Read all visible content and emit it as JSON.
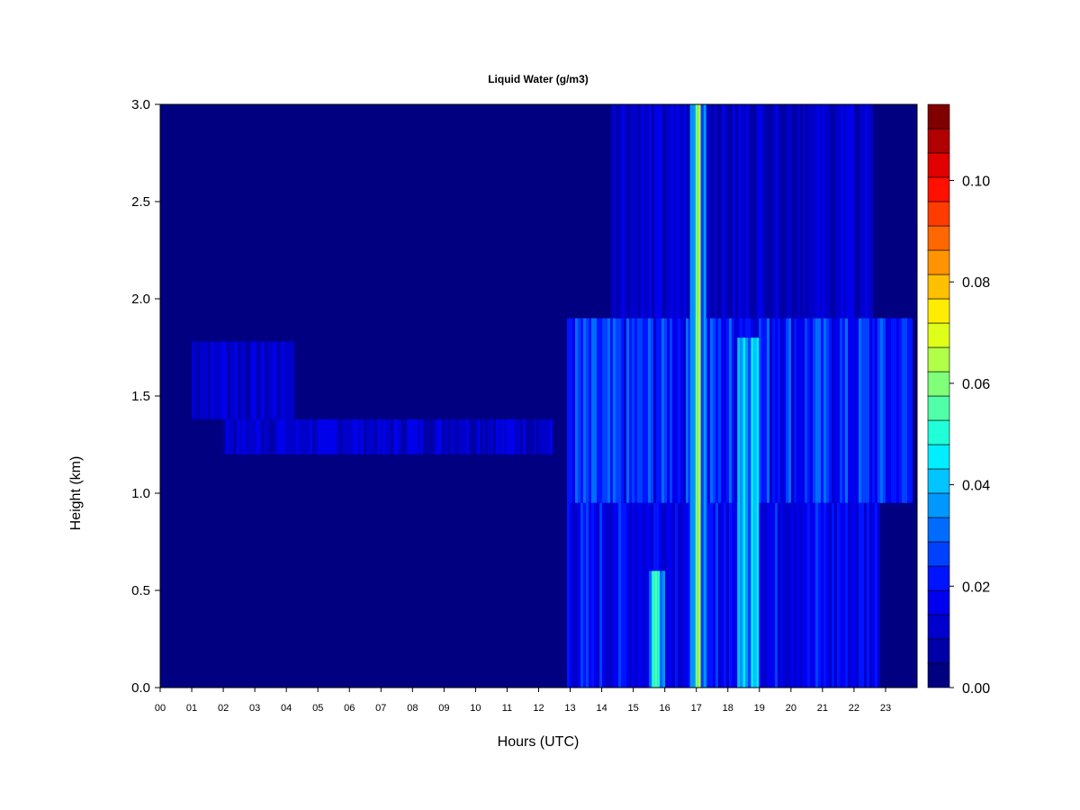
{
  "chart_data": {
    "type": "heatmap",
    "title": "Liquid Water (g/m3)",
    "xlabel": "Hours (UTC)",
    "ylabel": "Height (km)",
    "xlim": [
      0,
      24
    ],
    "ylim": [
      0,
      3.0
    ],
    "x_ticks": [
      "00",
      "01",
      "02",
      "03",
      "04",
      "05",
      "06",
      "07",
      "08",
      "09",
      "10",
      "11",
      "12",
      "13",
      "14",
      "15",
      "16",
      "17",
      "18",
      "19",
      "20",
      "21",
      "22",
      "23"
    ],
    "y_ticks": [
      "0.0",
      "0.5",
      "1.0",
      "1.5",
      "2.0",
      "2.5",
      "3.0"
    ],
    "colorbar": {
      "range": [
        0,
        0.115
      ],
      "ticks": [
        "0.00",
        "0.02",
        "0.04",
        "0.06",
        "0.08",
        "0.10"
      ],
      "tick_values": [
        0.0,
        0.02,
        0.04,
        0.06,
        0.08,
        0.1
      ],
      "colors": [
        "#000080",
        "#0000a8",
        "#0000cc",
        "#0000ee",
        "#0014ff",
        "#0040ff",
        "#006cff",
        "#0098ff",
        "#00c4ff",
        "#00eeff",
        "#20ffd8",
        "#50ffa8",
        "#80ff78",
        "#b0ff48",
        "#e0ff18",
        "#ffec00",
        "#ffc000",
        "#ff9400",
        "#ff6800",
        "#ff3c00",
        "#ff1000",
        "#e00000",
        "#b00000",
        "#800000"
      ]
    },
    "features": [
      {
        "x_range": [
          1.0,
          4.2
        ],
        "height_range": [
          1.38,
          1.78
        ],
        "value": 0.013
      },
      {
        "x_range": [
          2.0,
          12.4
        ],
        "height_range": [
          1.2,
          1.38
        ],
        "value": 0.013
      },
      {
        "x_range": [
          12.9,
          23.8
        ],
        "height_range": [
          0.95,
          1.9
        ],
        "value": 0.022
      },
      {
        "x_range": [
          12.9,
          22.8
        ],
        "height_range": [
          0.0,
          0.95
        ],
        "value": 0.018
      },
      {
        "x_range": [
          14.3,
          22.6
        ],
        "height_range": [
          1.9,
          3.0
        ],
        "value": 0.012
      },
      {
        "x_range": [
          16.8,
          17.3
        ],
        "height_range": [
          0.0,
          3.0
        ],
        "value": 0.045
      },
      {
        "x_range": [
          15.5,
          16.0
        ],
        "height_range": [
          0.0,
          0.6
        ],
        "value": 0.04
      },
      {
        "x_range": [
          18.3,
          18.9
        ],
        "height_range": [
          0.0,
          1.8
        ],
        "value": 0.035
      }
    ]
  }
}
